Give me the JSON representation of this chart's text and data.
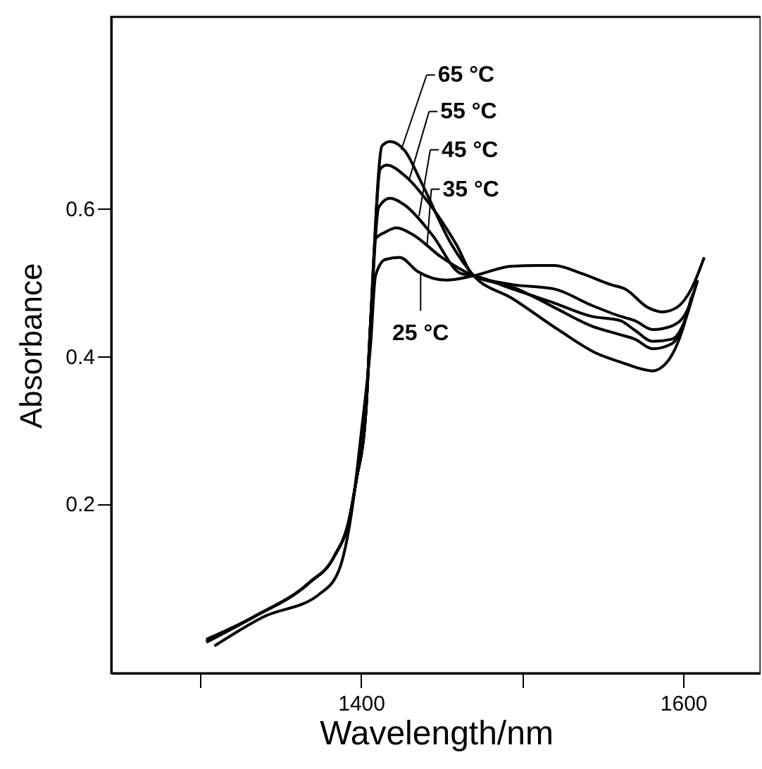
{
  "chart_data": {
    "type": "line",
    "xlabel": "Wavelength/nm",
    "ylabel": "Absorbance",
    "xlim": [
      1245,
      1648
    ],
    "ylim": [
      -0.03,
      0.86
    ],
    "xticks": [
      {
        "value": 1300,
        "label": null
      },
      1400,
      {
        "value": 1500,
        "label": null
      },
      1600
    ],
    "yticks": [
      0.2,
      0.4,
      0.6
    ],
    "grid": false,
    "marker": "none",
    "line_style": "solid",
    "series": [
      {
        "color": "#000000",
        "x": [
          1309,
          1339,
          1374,
          1386,
          1395,
          1400,
          1406,
          1409,
          1415,
          1424,
          1435,
          1453,
          1470,
          1494,
          1520,
          1537,
          1555,
          1564,
          1578,
          1587,
          1596,
          1605,
          1613
        ],
        "values": [
          0.007,
          0.046,
          0.077,
          0.108,
          0.201,
          0.293,
          0.417,
          0.509,
          0.531,
          0.534,
          0.515,
          0.503,
          0.509,
          0.522,
          0.523,
          0.512,
          0.497,
          0.491,
          0.466,
          0.46,
          0.466,
          0.491,
          0.534
        ]
      },
      {
        "color": "#000000",
        "x": [
          1304,
          1333,
          1368,
          1383,
          1393,
          1397,
          1403,
          1406,
          1409,
          1415,
          1422,
          1432,
          1450,
          1470,
          1494,
          1520,
          1543,
          1561,
          1570,
          1581,
          1593,
          1602,
          1609
        ],
        "values": [
          0.012,
          0.046,
          0.093,
          0.127,
          0.182,
          0.231,
          0.324,
          0.448,
          0.559,
          0.568,
          0.574,
          0.565,
          0.534,
          0.509,
          0.497,
          0.491,
          0.469,
          0.454,
          0.448,
          0.436,
          0.441,
          0.46,
          0.503
        ]
      },
      {
        "color": "#000000",
        "x": [
          1304,
          1333,
          1368,
          1383,
          1393,
          1397,
          1403,
          1406,
          1411,
          1418,
          1427,
          1444,
          1462,
          1470,
          1494,
          1520,
          1543,
          1561,
          1570,
          1581,
          1593,
          1602,
          1607
        ],
        "values": [
          0.013,
          0.046,
          0.093,
          0.127,
          0.182,
          0.231,
          0.324,
          0.448,
          0.602,
          0.614,
          0.605,
          0.565,
          0.512,
          0.509,
          0.491,
          0.472,
          0.454,
          0.448,
          0.435,
          0.42,
          0.423,
          0.454,
          0.49
        ]
      },
      {
        "color": "#000000",
        "x": [
          1304,
          1333,
          1368,
          1383,
          1393,
          1397,
          1403,
          1406,
          1412,
          1416,
          1427,
          1444,
          1459,
          1470,
          1494,
          1520,
          1543,
          1561,
          1570,
          1581,
          1593,
          1602,
          1606
        ],
        "values": [
          0.014,
          0.046,
          0.093,
          0.127,
          0.182,
          0.231,
          0.324,
          0.448,
          0.654,
          0.659,
          0.645,
          0.602,
          0.552,
          0.509,
          0.494,
          0.466,
          0.441,
          0.429,
          0.423,
          0.41,
          0.417,
          0.454,
          0.485
        ]
      },
      {
        "color": "#000000",
        "x": [
          1304,
          1333,
          1368,
          1383,
          1393,
          1397,
          1403,
          1406,
          1413,
          1418,
          1427,
          1438,
          1456,
          1470,
          1494,
          1523,
          1546,
          1561,
          1581,
          1590,
          1602,
          1605
        ],
        "values": [
          0.016,
          0.046,
          0.093,
          0.127,
          0.182,
          0.231,
          0.324,
          0.448,
          0.685,
          0.691,
          0.679,
          0.633,
          0.552,
          0.509,
          0.478,
          0.435,
          0.404,
          0.392,
          0.38,
          0.392,
          0.454,
          0.48
        ]
      }
    ],
    "annotations": [
      {
        "text": "65 °C",
        "x": 1425,
        "y": 0.68
      },
      {
        "text": "55 °C",
        "x": 1430,
        "y": 0.64
      },
      {
        "text": "45 °C",
        "x": 1436,
        "y": 0.59
      },
      {
        "text": "35 °C",
        "x": 1441,
        "y": 0.55
      },
      {
        "text": "25 °C",
        "x": 1437,
        "y": 0.513
      }
    ]
  }
}
